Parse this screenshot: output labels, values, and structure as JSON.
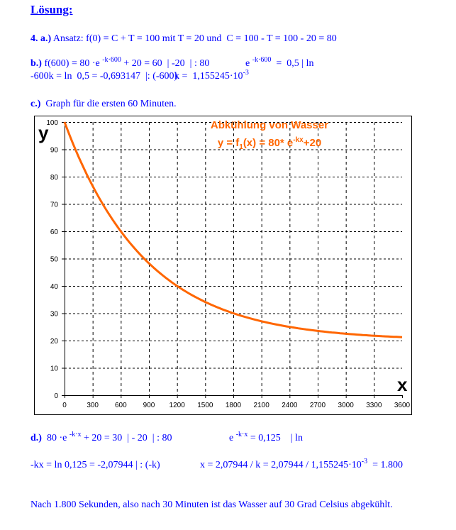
{
  "title": "Lösung:",
  "a": {
    "label": "4. a.)",
    "text": " Ansatz: f(0) = C + T = 100 mit T = 20 und  C = 100 - T = 100 - 20 = 80"
  },
  "b": {
    "label": "b.)",
    "t1": " f(600) = 80 ·e ",
    "s1": "-k·600",
    "t2": " + 20 = 60  | -20  | : 80",
    "t3": "e ",
    "s2": "-k·600",
    "t4": "  =  0,5 | ln",
    "t5": "-600k = ln  0,5 = -0,693147  |: (-600)",
    "t6": "k =  1,155245·10",
    "s3": "-3"
  },
  "c": {
    "label": "c.)",
    "text": "  Graph für die ersten 60 Minuten."
  },
  "d": {
    "label": "d.)",
    "t1": "  80 ·e ",
    "s1": "-k·x",
    "t2": " + 20 = 30  | - 20  | : 80",
    "t3": "e ",
    "s2": "-k·x",
    "t4": " = 0,125    | ln",
    "t5": "-kx = ln 0,125 = -2,07944 | : (-k)",
    "t6": "x = 2,07944 / k = 2,07944 / 1,155245·10",
    "s3": "-3",
    "t7": "  = 1.800"
  },
  "conclusion": "Nach 1.800 Sekunden, also nach 30 Minuten ist das Wasser auf 30 Grad Celsius abgekühlt.",
  "chart_data": {
    "type": "line",
    "title": "Abkühlung von Wasser",
    "formula": {
      "pre": "y = f",
      "sub": "1",
      "mid": "(x) = 80* e",
      "sup": "-kx",
      "post": "+20"
    },
    "xlabel": "x",
    "ylabel": "y",
    "xlim": [
      0,
      3600
    ],
    "ylim": [
      0,
      100
    ],
    "xticks": [
      0,
      300,
      600,
      900,
      1200,
      1500,
      1800,
      2100,
      2400,
      2700,
      3000,
      3300,
      3600
    ],
    "yticks": [
      0,
      10,
      20,
      30,
      40,
      50,
      60,
      70,
      80,
      90,
      100
    ],
    "grid": true,
    "function": {
      "C": 80,
      "T": 20,
      "k": 0.001155245
    },
    "series": [
      {
        "name": "f1(x)",
        "x": [
          0,
          300,
          600,
          900,
          1200,
          1500,
          1800,
          2100,
          2400,
          2700,
          3000,
          3300,
          3600
        ],
        "y": [
          100,
          76.57,
          60,
          48.28,
          40,
          34.14,
          30,
          27.07,
          25,
          23.54,
          22.5,
          21.77,
          21.25
        ]
      }
    ],
    "color": "#ff6600"
  }
}
